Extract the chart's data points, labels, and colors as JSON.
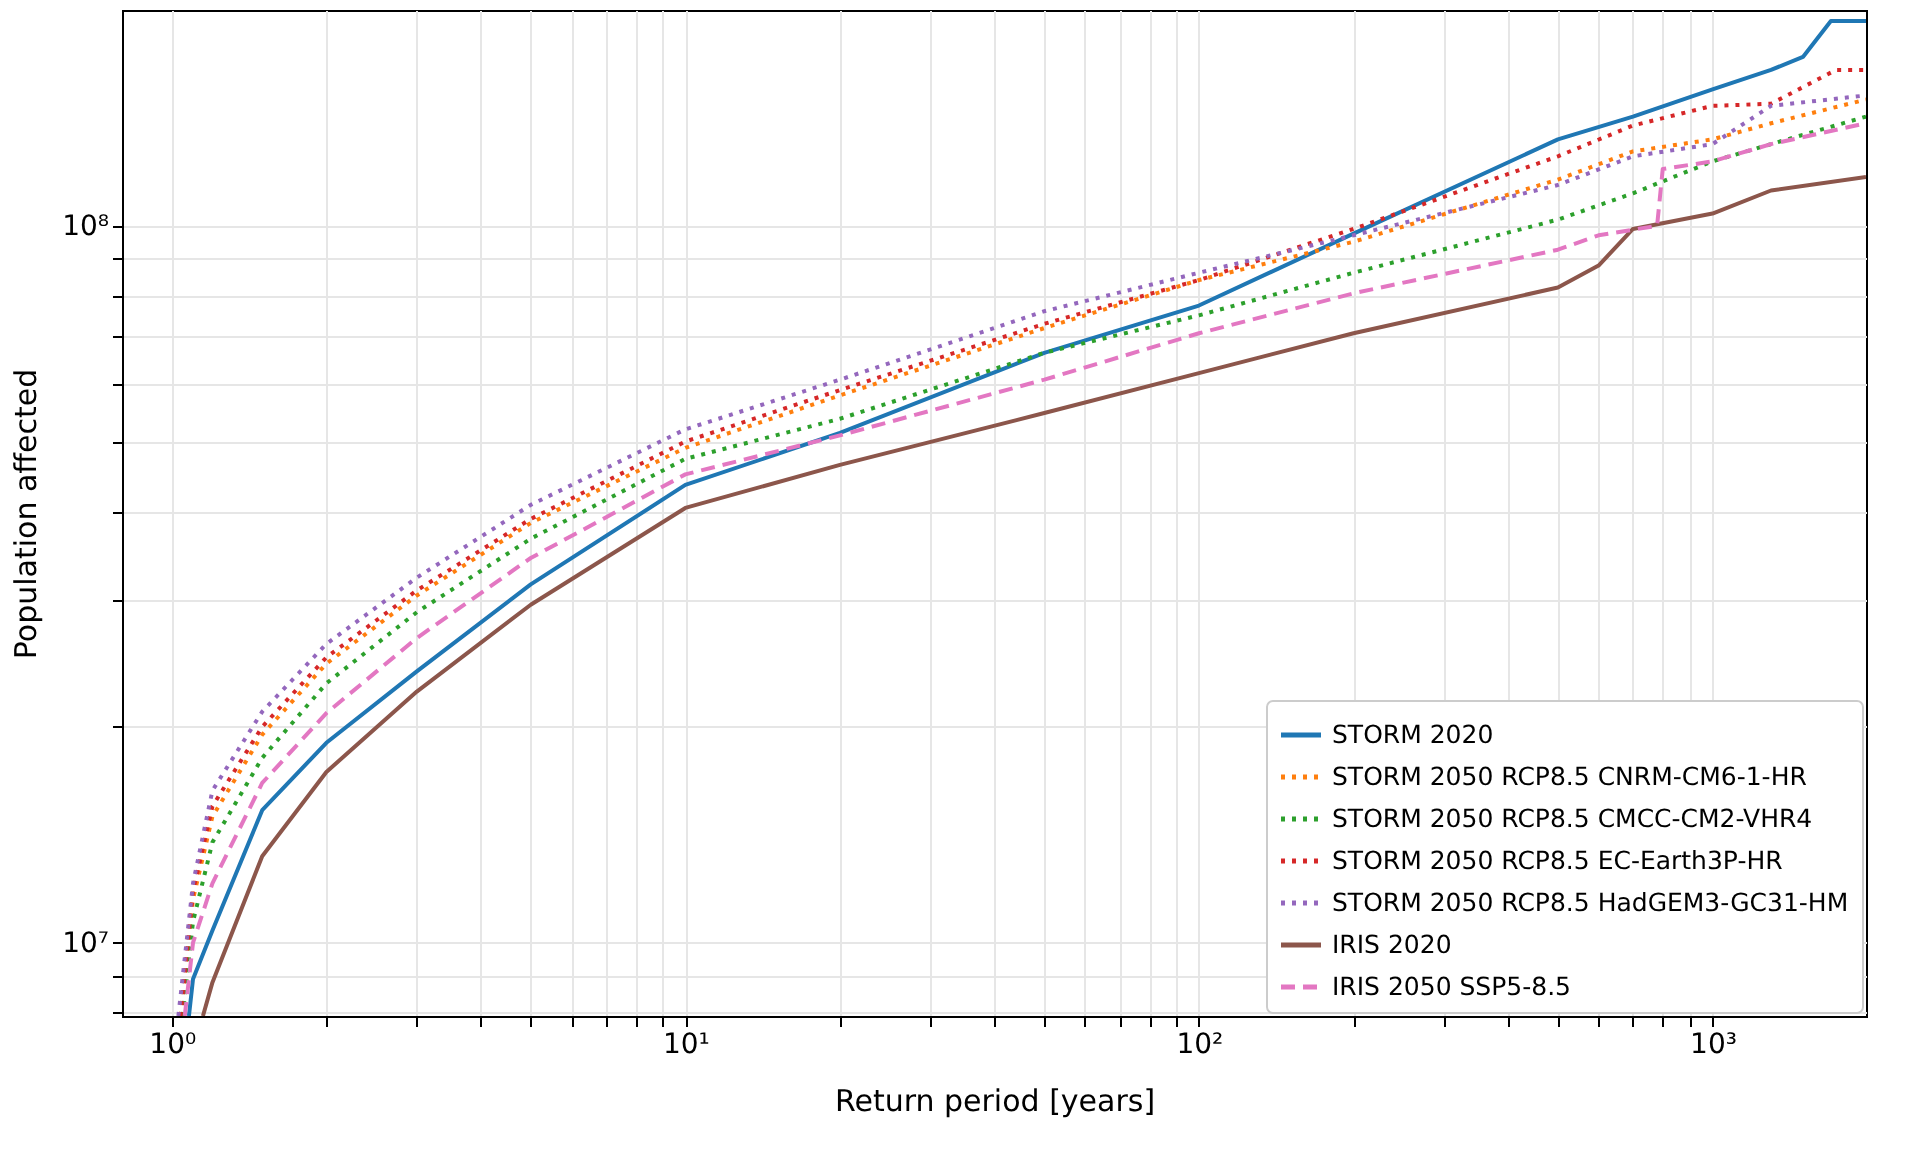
{
  "chart_data": {
    "type": "line",
    "xlabel": "Return period [years]",
    "ylabel": "Population affected",
    "log": "xy",
    "grid": true,
    "legend": "bottom right",
    "xlim": [
      0.8,
      1990
    ],
    "ylim": [
      7900000.0,
      200000000.0
    ],
    "xticks": [
      {
        "value": 1,
        "label": "10⁰"
      },
      {
        "value": 2,
        "label": null
      },
      {
        "value": 3,
        "label": null
      },
      {
        "value": 4,
        "label": null
      },
      {
        "value": 5,
        "label": null
      },
      {
        "value": 6,
        "label": null
      },
      {
        "value": 7,
        "label": null
      },
      {
        "value": 8,
        "label": null
      },
      {
        "value": 9,
        "label": null
      },
      {
        "value": 10,
        "label": "10¹"
      },
      {
        "value": 20,
        "label": null
      },
      {
        "value": 30,
        "label": null
      },
      {
        "value": 40,
        "label": null
      },
      {
        "value": 50,
        "label": null
      },
      {
        "value": 60,
        "label": null
      },
      {
        "value": 70,
        "label": null
      },
      {
        "value": 80,
        "label": null
      },
      {
        "value": 90,
        "label": null
      },
      {
        "value": 100,
        "label": "10²"
      },
      {
        "value": 200,
        "label": null
      },
      {
        "value": 300,
        "label": null
      },
      {
        "value": 400,
        "label": null
      },
      {
        "value": 500,
        "label": null
      },
      {
        "value": 600,
        "label": null
      },
      {
        "value": 700,
        "label": null
      },
      {
        "value": 800,
        "label": null
      },
      {
        "value": 900,
        "label": null
      },
      {
        "value": 1000,
        "label": "10³"
      }
    ],
    "yticks": [
      {
        "value": 8000000,
        "label": null
      },
      {
        "value": 9000000,
        "label": null
      },
      {
        "value": 10000000,
        "label": "10⁷"
      },
      {
        "value": 20000000,
        "label": null
      },
      {
        "value": 30000000,
        "label": null
      },
      {
        "value": 40000000,
        "label": null
      },
      {
        "value": 50000000,
        "label": null
      },
      {
        "value": 60000000,
        "label": null
      },
      {
        "value": 70000000,
        "label": null
      },
      {
        "value": 80000000,
        "label": null
      },
      {
        "value": 90000000,
        "label": null
      },
      {
        "value": 100000000,
        "label": "10⁸"
      }
    ],
    "series": [
      {
        "name": "STORM 2020",
        "color": "#1f77b4",
        "line_style": "solid",
        "x": [
          1.08,
          1.1,
          1.2,
          1.5,
          2,
          3,
          5,
          10,
          20,
          50,
          100,
          200,
          500,
          700,
          1000,
          1300,
          1500,
          1700,
          1990
        ],
        "values": [
          7900000.0,
          8900000.0,
          10400000.0,
          15300000.0,
          19000000.0,
          23900000.0,
          31600000.0,
          43500000.0,
          51400000.0,
          66500000.0,
          77400000.0,
          97500000.0,
          132000000.0,
          142000000.0,
          155000000.0,
          165000000.0,
          172000000.0,
          193000000.0,
          193000000.0
        ]
      },
      {
        "name": "STORM 2050 RCP8.5 CNRM-CM6-1-HR",
        "color": "#ff7f0e",
        "line_style": "dotted",
        "x": [
          1.04,
          1.1,
          1.2,
          1.5,
          2,
          3,
          5,
          10,
          20,
          50,
          100,
          200,
          500,
          700,
          1000,
          1300,
          1990
        ],
        "values": [
          7900000.0,
          11500000.0,
          15000000.0,
          19500000.0,
          24500000.0,
          30500000.0,
          38500000.0,
          49000000.0,
          58000000.0,
          72000000.0,
          84000000.0,
          95000000.0,
          116000000.0,
          127000000.0,
          132000000.0,
          139000000.0,
          150000000.0
        ]
      },
      {
        "name": "STORM 2050 RCP8.5 CMCC-CM2-VHR4",
        "color": "#2ca02c",
        "line_style": "dotted",
        "x": [
          1.05,
          1.1,
          1.2,
          1.5,
          2,
          3,
          5,
          10,
          20,
          50,
          100,
          200,
          500,
          700,
          1000,
          1300,
          1990
        ],
        "values": [
          7900000.0,
          10700000.0,
          13800000.0,
          18100000.0,
          23000000.0,
          28900000.0,
          36600000.0,
          47300000.0,
          53800000.0,
          66500000.0,
          75000000.0,
          86000000.0,
          102000000.0,
          111000000.0,
          123000000.0,
          130000000.0,
          142000000.0
        ]
      },
      {
        "name": "STORM 2050 RCP8.5 EC-Earth3P-HR",
        "color": "#d62728",
        "line_style": "dotted",
        "x": [
          1.04,
          1.1,
          1.2,
          1.5,
          2,
          3,
          5,
          10,
          20,
          50,
          100,
          200,
          500,
          700,
          1000,
          1300,
          1740,
          1990
        ],
        "values": [
          7900000.0,
          11800000.0,
          15500000.0,
          20000000.0,
          25000000.0,
          31000000.0,
          39000000.0,
          50000000.0,
          59000000.0,
          73000000.0,
          84000000.0,
          99000000.0,
          125000000.0,
          138000000.0,
          147000000.0,
          148000000.0,
          165000000.0,
          165000000.0
        ]
      },
      {
        "name": "STORM 2050 RCP8.5 HadGEM3-GC31-HM",
        "color": "#9467bd",
        "line_style": "dotted",
        "x": [
          1.03,
          1.1,
          1.2,
          1.5,
          2,
          3,
          5,
          10,
          20,
          50,
          100,
          200,
          500,
          700,
          1000,
          1300,
          1990
        ],
        "values": [
          7900000.0,
          12100000.0,
          16300000.0,
          21000000.0,
          26100000.0,
          32300000.0,
          40800000.0,
          52000000.0,
          61000000.0,
          76000000.0,
          86000000.0,
          97000000.0,
          114000000.0,
          125000000.0,
          130000000.0,
          147000000.0,
          152000000.0
        ]
      },
      {
        "name": "IRIS 2020",
        "color": "#8c564b",
        "line_style": "solid",
        "x": [
          1.15,
          1.2,
          1.5,
          2,
          3,
          5,
          10,
          20,
          50,
          100,
          200,
          500,
          600,
          700,
          1000,
          1300,
          1990
        ],
        "values": [
          7900000.0,
          8800000.0,
          13200000.0,
          17300000.0,
          22400000.0,
          29600000.0,
          40400000.0,
          46400000.0,
          54800000.0,
          62300000.0,
          70800000.0,
          82000000.0,
          88000000.0,
          99000000.0,
          104000000.0,
          112000000.0,
          117000000.0
        ]
      },
      {
        "name": "IRIS 2050 SSP5-8.5",
        "color": "#e377c2",
        "line_style": "dashed",
        "x": [
          1.06,
          1.1,
          1.2,
          1.5,
          2,
          3,
          5,
          10,
          20,
          50,
          100,
          200,
          500,
          600,
          780,
          800,
          1000,
          1300,
          1990
        ],
        "values": [
          7900000.0,
          10000000.0,
          12100000.0,
          16700000.0,
          20900000.0,
          26600000.0,
          34400000.0,
          45000000.0,
          51000000.0,
          61000000.0,
          70800000.0,
          80500000.0,
          92600000.0,
          97000000.0,
          100000000.0,
          120000000.0,
          123000000.0,
          130000000.0,
          139000000.0
        ]
      }
    ]
  }
}
